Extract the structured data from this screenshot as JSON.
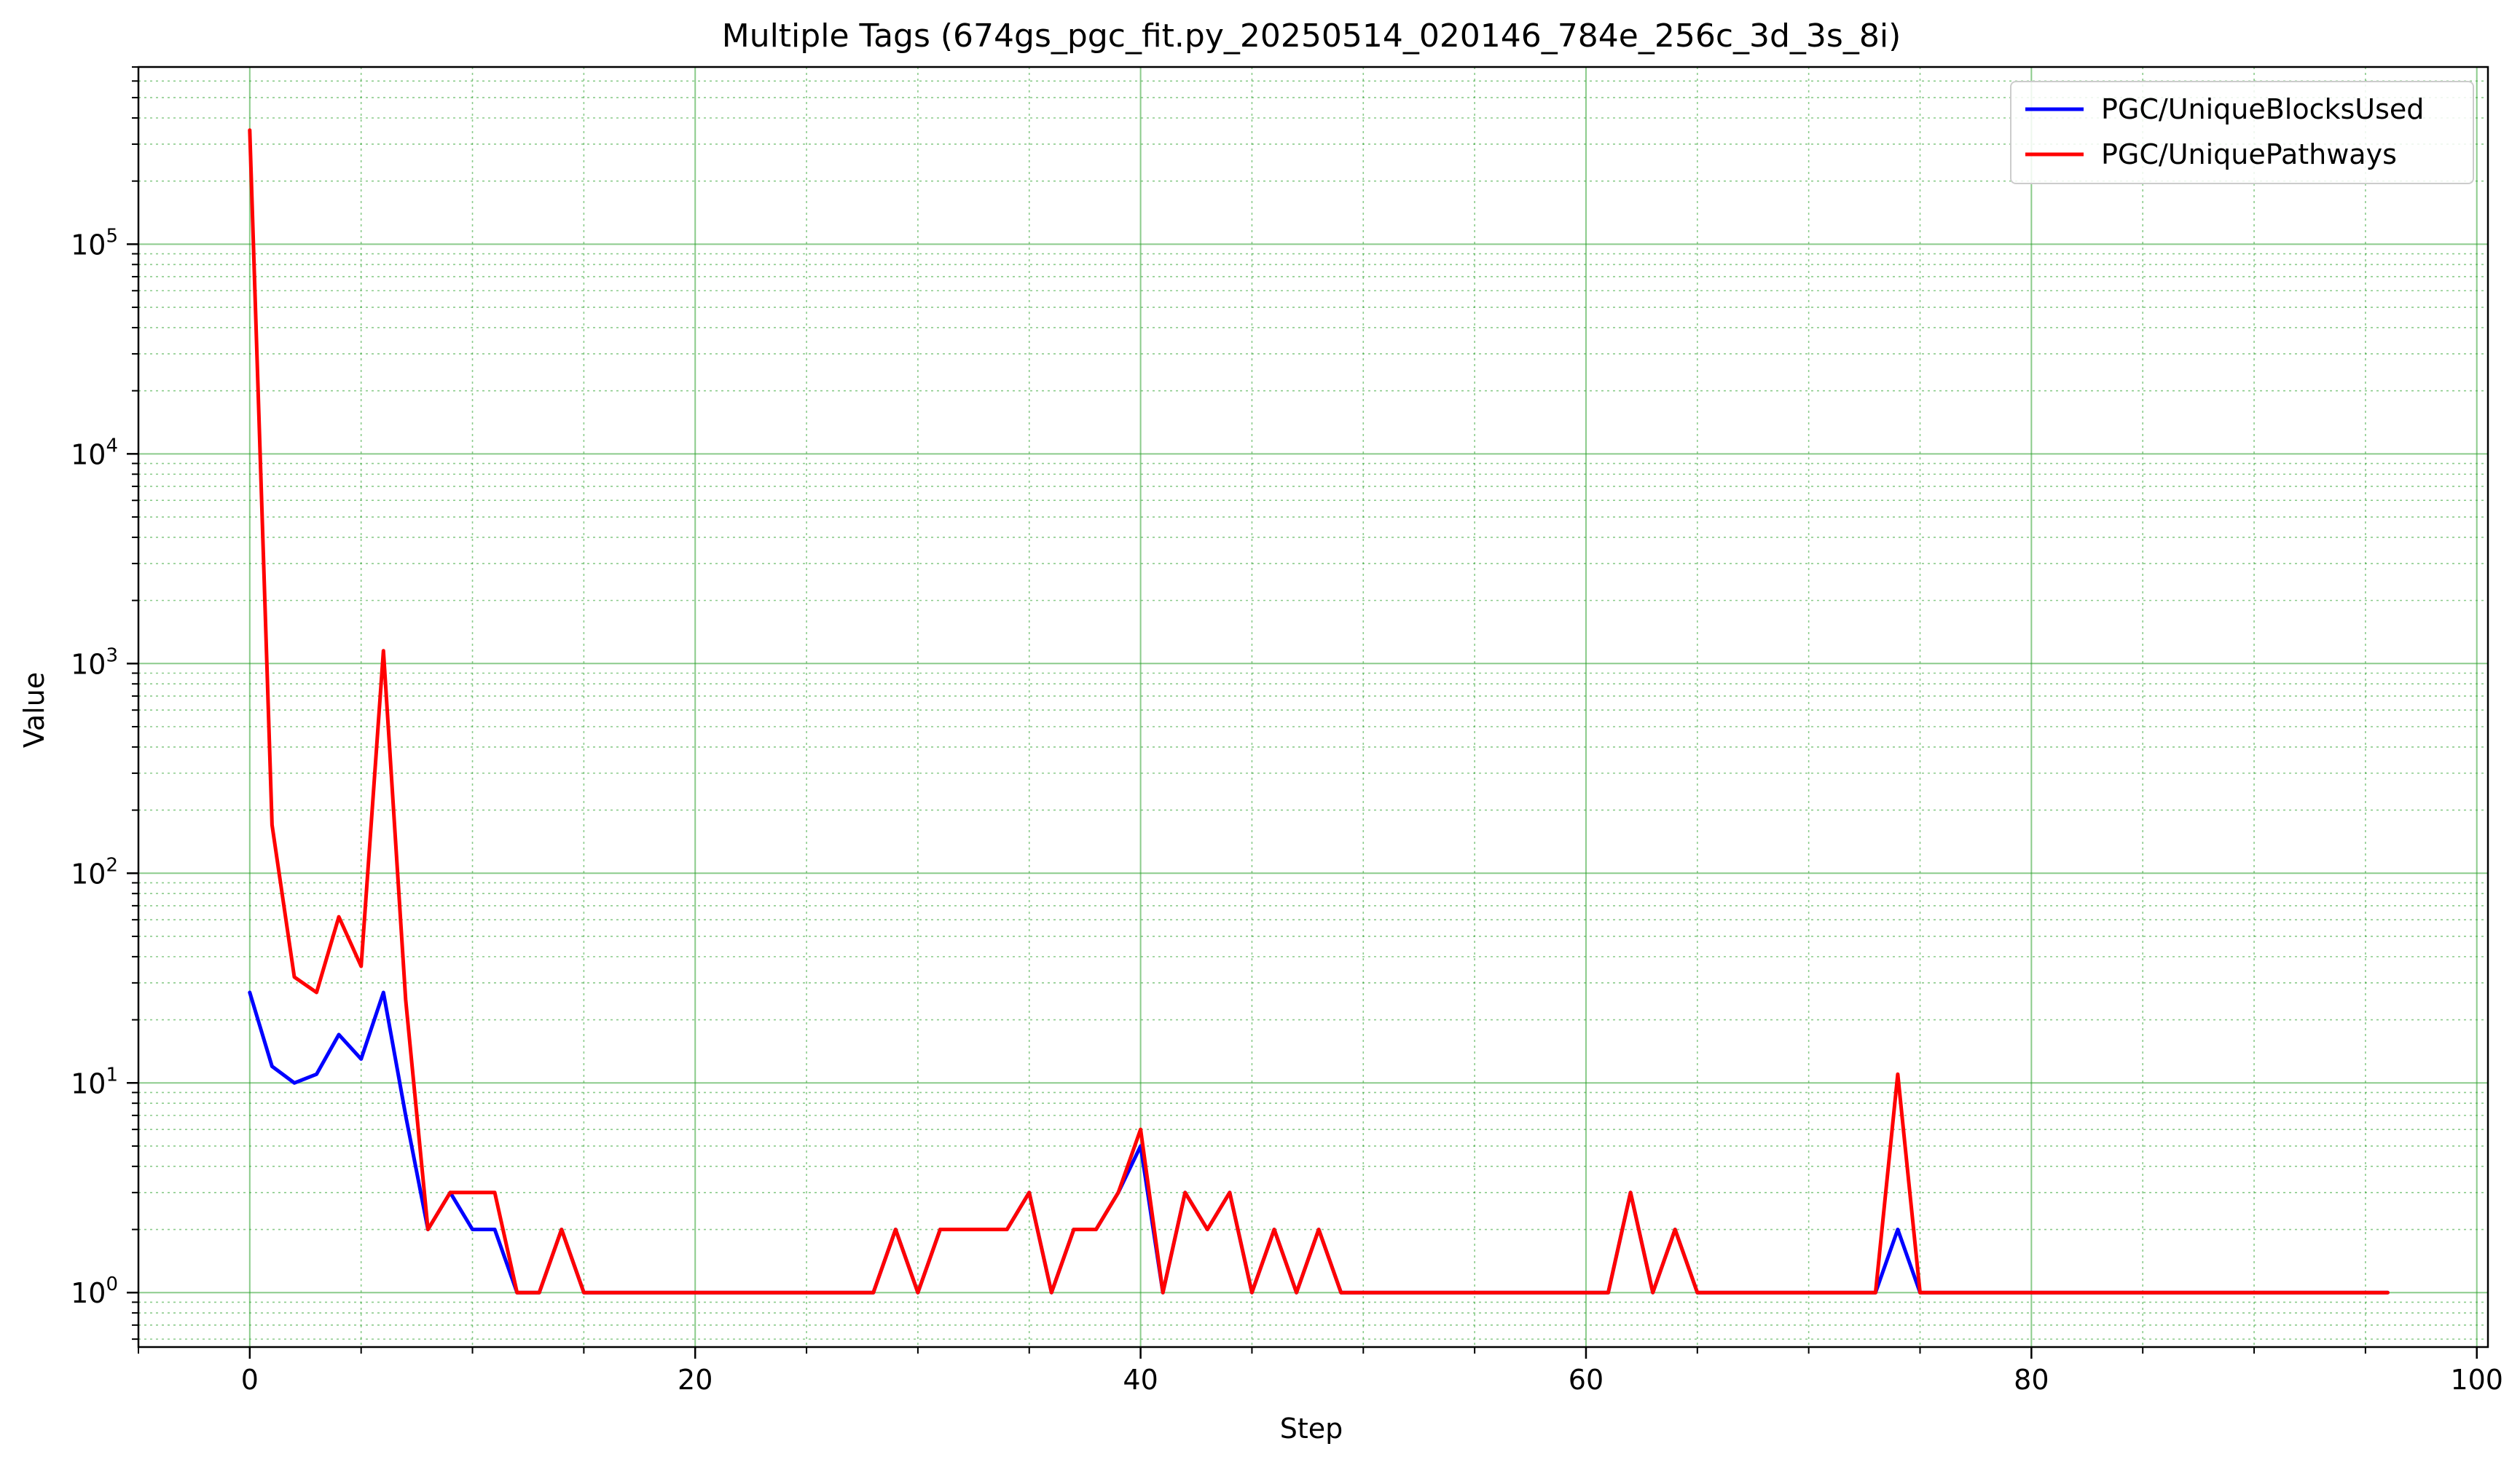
{
  "chart_data": {
    "type": "line",
    "title": "Multiple Tags (674gs_pgc_fit.py_20250514_020146_784e_256c_3d_3s_8i)",
    "xlabel": "Step",
    "ylabel": "Value",
    "xlim": [
      -5,
      100.5
    ],
    "ylim": [
      0.55,
      700000
    ],
    "yscale": "log",
    "xticks": [
      0,
      20,
      40,
      60,
      80,
      100
    ],
    "yticks": [
      {
        "value": 1,
        "base": "10",
        "exp": "0"
      },
      {
        "value": 10,
        "base": "10",
        "exp": "1"
      },
      {
        "value": 100,
        "base": "10",
        "exp": "2"
      },
      {
        "value": 1000,
        "base": "10",
        "exp": "3"
      },
      {
        "value": 10000,
        "base": "10",
        "exp": "4"
      },
      {
        "value": 100000,
        "base": "10",
        "exp": "5"
      }
    ],
    "grid": true,
    "grid_color": "#2ca02c",
    "legend_position": "top-right",
    "series": [
      {
        "name": "PGC/UniqueBlocksUsed",
        "color": "#0000ff",
        "values": [
          27,
          12,
          10,
          11,
          17,
          13,
          27,
          7,
          2,
          3,
          2,
          2,
          1,
          1,
          2,
          1,
          1,
          1,
          1,
          1,
          1,
          1,
          1,
          1,
          1,
          1,
          1,
          1,
          1,
          2,
          1,
          2,
          2,
          2,
          2,
          3,
          1,
          2,
          2,
          3,
          5,
          1,
          3,
          2,
          3,
          1,
          2,
          1,
          2,
          1,
          1,
          1,
          1,
          1,
          1,
          1,
          1,
          1,
          1,
          1,
          1,
          1,
          3,
          1,
          2,
          1,
          1,
          1,
          1,
          1,
          1,
          1,
          1,
          1,
          2,
          1,
          1,
          1,
          1,
          1,
          1,
          1,
          1,
          1,
          1,
          1,
          1,
          1,
          1,
          1,
          1,
          1,
          1,
          1,
          1,
          1,
          1
        ]
      },
      {
        "name": "PGC/UniquePathways",
        "color": "#ff0000",
        "values": [
          350000,
          170,
          32,
          27,
          62,
          36,
          1150,
          25,
          2,
          3,
          3,
          3,
          1,
          1,
          2,
          1,
          1,
          1,
          1,
          1,
          1,
          1,
          1,
          1,
          1,
          1,
          1,
          1,
          1,
          2,
          1,
          2,
          2,
          2,
          2,
          3,
          1,
          2,
          2,
          3,
          6,
          1,
          3,
          2,
          3,
          1,
          2,
          1,
          2,
          1,
          1,
          1,
          1,
          1,
          1,
          1,
          1,
          1,
          1,
          1,
          1,
          1,
          3,
          1,
          2,
          1,
          1,
          1,
          1,
          1,
          1,
          1,
          1,
          1,
          11,
          1,
          1,
          1,
          1,
          1,
          1,
          1,
          1,
          1,
          1,
          1,
          1,
          1,
          1,
          1,
          1,
          1,
          1,
          1,
          1,
          1,
          1
        ]
      }
    ]
  }
}
